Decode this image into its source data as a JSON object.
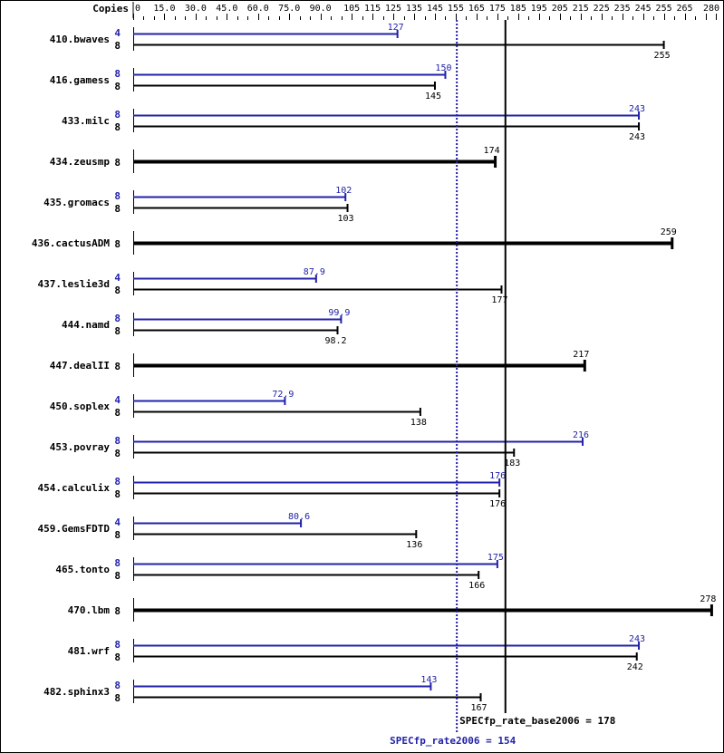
{
  "chart_data": {
    "type": "bar",
    "orientation": "horizontal",
    "title": "",
    "xlabel": "",
    "ylabel": "",
    "copies_header": "Copies",
    "xlim": [
      0,
      280
    ],
    "tick_labels": [
      "0",
      "15.0",
      "30.0",
      "45.0",
      "60.0",
      "75.0",
      "90.0",
      "105",
      "115",
      "125",
      "135",
      "145",
      "155",
      "165",
      "175",
      "185",
      "195",
      "205",
      "215",
      "225",
      "235",
      "245",
      "255",
      "265",
      "280"
    ],
    "tick_values": [
      0,
      15,
      30,
      45,
      60,
      75,
      90,
      105,
      115,
      125,
      135,
      145,
      155,
      165,
      175,
      185,
      195,
      205,
      215,
      225,
      235,
      245,
      255,
      265,
      280
    ],
    "colors": {
      "peak": "#2222aa",
      "base": "#000000"
    },
    "series": [
      {
        "name": "SPECfp_rate2006 (peak)",
        "color": "#2222aa"
      },
      {
        "name": "SPECfp_rate_base2006 (base)",
        "color": "#000000"
      }
    ],
    "benchmarks": [
      {
        "name": "410.bwaves",
        "peak_copies": "4",
        "peak": 127,
        "base_copies": "8",
        "base": 255
      },
      {
        "name": "416.gamess",
        "peak_copies": "8",
        "peak": 150,
        "base_copies": "8",
        "base": 145
      },
      {
        "name": "433.milc",
        "peak_copies": "8",
        "peak": 243,
        "base_copies": "8",
        "base": 243
      },
      {
        "name": "434.zeusmp",
        "peak_copies": null,
        "peak": null,
        "base_copies": "8",
        "base": 174
      },
      {
        "name": "435.gromacs",
        "peak_copies": "8",
        "peak": 102,
        "base_copies": "8",
        "base": 103
      },
      {
        "name": "436.cactusADM",
        "peak_copies": null,
        "peak": null,
        "base_copies": "8",
        "base": 259
      },
      {
        "name": "437.leslie3d",
        "peak_copies": "4",
        "peak": 87.9,
        "base_copies": "8",
        "base": 177
      },
      {
        "name": "444.namd",
        "peak_copies": "8",
        "peak": 99.9,
        "base_copies": "8",
        "base": 98.2
      },
      {
        "name": "447.dealII",
        "peak_copies": null,
        "peak": null,
        "base_copies": "8",
        "base": 217
      },
      {
        "name": "450.soplex",
        "peak_copies": "4",
        "peak": 72.9,
        "base_copies": "8",
        "base": 138
      },
      {
        "name": "453.povray",
        "peak_copies": "8",
        "peak": 216,
        "base_copies": "8",
        "base": 183
      },
      {
        "name": "454.calculix",
        "peak_copies": "8",
        "peak": 176,
        "base_copies": "8",
        "base": 176
      },
      {
        "name": "459.GemsFDTD",
        "peak_copies": "4",
        "peak": 80.6,
        "base_copies": "8",
        "base": 136
      },
      {
        "name": "465.tonto",
        "peak_copies": "8",
        "peak": 175,
        "base_copies": "8",
        "base": 166
      },
      {
        "name": "470.lbm",
        "peak_copies": null,
        "peak": null,
        "base_copies": "8",
        "base": 278
      },
      {
        "name": "481.wrf",
        "peak_copies": "8",
        "peak": 243,
        "base_copies": "8",
        "base": 242
      },
      {
        "name": "482.sphinx3",
        "peak_copies": "8",
        "peak": 143,
        "base_copies": "8",
        "base": 167
      }
    ],
    "annotations": {
      "base_summary_label": "SPECfp_rate_base2006 = 178",
      "base_summary_value": 178,
      "peak_summary_label": "SPECfp_rate2006 = 154",
      "peak_summary_value": 154
    }
  }
}
